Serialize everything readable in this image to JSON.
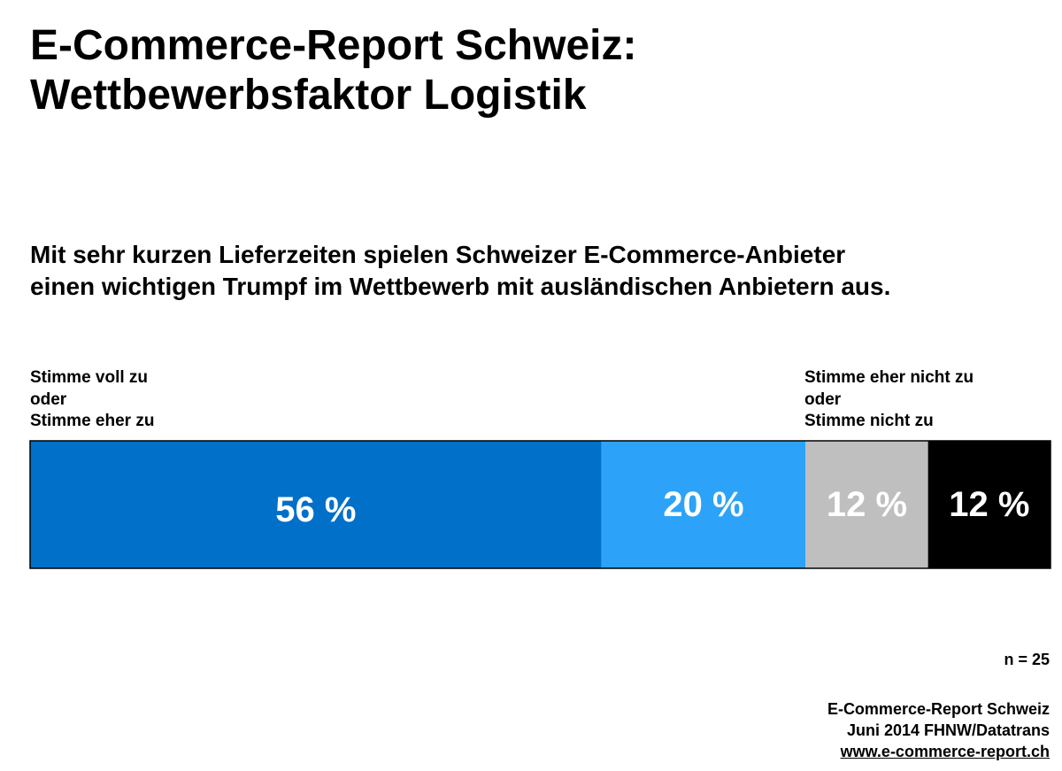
{
  "title": {
    "line1": "E-Commerce-Report Schweiz:",
    "line2": "Wettbewerbsfaktor Logistik"
  },
  "subtitle": {
    "line1": "Mit sehr kurzen Lieferzeiten spielen Schweizer E-Commerce-Anbieter",
    "line2": "einen wichtigen Trumpf im Wettbewerb mit ausländischen Anbietern aus."
  },
  "category_labels": {
    "left": [
      "Stimme voll zu",
      "oder",
      "Stimme eher zu"
    ],
    "right": [
      "Stimme eher nicht zu",
      "oder",
      "Stimme nicht zu"
    ]
  },
  "chart_data": {
    "type": "bar",
    "orientation": "horizontal-stacked-100",
    "grid": false,
    "legend": "none",
    "segments": [
      {
        "value": 56,
        "label": "56 %",
        "color": "#0070c8",
        "text_color": "#ffffff"
      },
      {
        "value": 20,
        "label": "20 %",
        "color": "#2ca3f8",
        "text_color": "#ffffff"
      },
      {
        "value": 12,
        "label": "12 %",
        "color": "#bfbfbf",
        "text_color": "#ffffff"
      },
      {
        "value": 12,
        "label": "12 %",
        "color": "#000000",
        "text_color": "#ffffff"
      }
    ]
  },
  "footer": {
    "n": "n = 25",
    "source": [
      "E-Commerce-Report Schweiz",
      "Juni 2014 FHNW/Datatrans"
    ],
    "url": "www.e-commerce-report.ch"
  }
}
